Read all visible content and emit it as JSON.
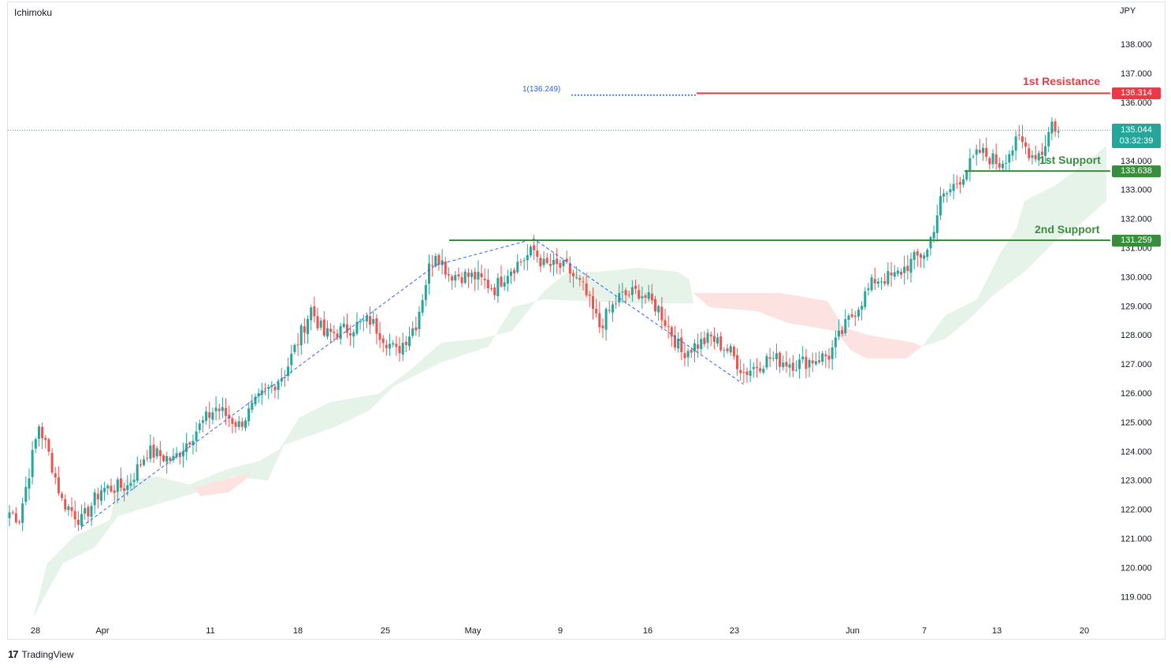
{
  "header": {
    "indicator": "Ichimoku",
    "currency": "JPY"
  },
  "branding": {
    "logo_text": "TradingView",
    "logo_mark": "17"
  },
  "colors": {
    "up": "#26a69a",
    "down": "#ef5350",
    "support": "#388e3c",
    "resistance": "#f23645",
    "cloud_bull": "#e6f3e9",
    "cloud_bear": "#fde2e2",
    "fib": "#2962ff",
    "price_tag": "#26a69a"
  },
  "levels": {
    "resistance_1": {
      "label": "1st Resistance",
      "value": "136.314"
    },
    "support_1": {
      "label": "1st Support",
      "value": "133.638"
    },
    "support_2": {
      "label": "2nd Support",
      "value": "131.259"
    }
  },
  "fib_label": "1(136.249)",
  "current_price": {
    "value": "135.044",
    "countdown": "03:32:39"
  },
  "chart_data": {
    "type": "candlestick",
    "title": "",
    "ylim": [
      118,
      138.8
    ],
    "y_ticks": [
      "138.000",
      "137.000",
      "136.000",
      "135.000",
      "134.000",
      "133.000",
      "132.000",
      "131.000",
      "130.000",
      "129.000",
      "128.000",
      "127.000",
      "126.000",
      "125.000",
      "124.000",
      "123.000",
      "122.000",
      "121.000",
      "120.000",
      "119.000"
    ],
    "x_ticks": [
      "28",
      "Apr",
      "11",
      "18",
      "25",
      "May",
      "9",
      "16",
      "23",
      "Jun",
      "7",
      "13",
      "20"
    ],
    "anchors": [
      {
        "i": 0,
        "c": 121.9
      },
      {
        "i": 3,
        "c": 121.7
      },
      {
        "i": 9,
        "c": 124.9
      },
      {
        "i": 12,
        "c": 123.9
      },
      {
        "i": 16,
        "c": 122.3
      },
      {
        "i": 22,
        "c": 121.6
      },
      {
        "i": 28,
        "c": 122.7
      },
      {
        "i": 36,
        "c": 122.8
      },
      {
        "i": 42,
        "c": 124.0
      },
      {
        "i": 50,
        "c": 123.7
      },
      {
        "i": 56,
        "c": 124.6
      },
      {
        "i": 63,
        "c": 125.5
      },
      {
        "i": 70,
        "c": 124.9
      },
      {
        "i": 77,
        "c": 125.9
      },
      {
        "i": 84,
        "c": 126.7
      },
      {
        "i": 92,
        "c": 128.9
      },
      {
        "i": 96,
        "c": 128.0
      },
      {
        "i": 103,
        "c": 128.2
      },
      {
        "i": 110,
        "c": 128.5
      },
      {
        "i": 118,
        "c": 127.4
      },
      {
        "i": 124,
        "c": 128.4
      },
      {
        "i": 128,
        "c": 130.3
      },
      {
        "i": 130,
        "c": 130.9
      },
      {
        "i": 134,
        "c": 130.1
      },
      {
        "i": 142,
        "c": 130.0
      },
      {
        "i": 148,
        "c": 129.6
      },
      {
        "i": 152,
        "c": 130.2
      },
      {
        "i": 160,
        "c": 130.9
      },
      {
        "i": 163,
        "c": 130.4
      },
      {
        "i": 170,
        "c": 130.3
      },
      {
        "i": 175,
        "c": 129.6
      },
      {
        "i": 180,
        "c": 128.3
      },
      {
        "i": 186,
        "c": 129.3
      },
      {
        "i": 192,
        "c": 129.5
      },
      {
        "i": 198,
        "c": 128.9
      },
      {
        "i": 205,
        "c": 127.4
      },
      {
        "i": 214,
        "c": 127.9
      },
      {
        "i": 220,
        "c": 127.4
      },
      {
        "i": 224,
        "c": 126.7
      },
      {
        "i": 232,
        "c": 127.2
      },
      {
        "i": 240,
        "c": 127.0
      },
      {
        "i": 250,
        "c": 127.3
      },
      {
        "i": 256,
        "c": 128.5
      },
      {
        "i": 264,
        "c": 129.9
      },
      {
        "i": 270,
        "c": 130.0
      },
      {
        "i": 276,
        "c": 130.6
      },
      {
        "i": 280,
        "c": 130.9
      },
      {
        "i": 284,
        "c": 132.6
      },
      {
        "i": 290,
        "c": 133.4
      },
      {
        "i": 296,
        "c": 134.3
      },
      {
        "i": 302,
        "c": 133.9
      },
      {
        "i": 308,
        "c": 134.7
      },
      {
        "i": 312,
        "c": 134.2
      },
      {
        "i": 315,
        "c": 134.3
      },
      {
        "i": 318,
        "c": 135.3
      },
      {
        "i": 320,
        "c": 135.0
      }
    ],
    "zigzag": [
      {
        "i": 22,
        "v": 121.4
      },
      {
        "i": 130,
        "v": 130.4
      },
      {
        "i": 160,
        "v": 131.3
      },
      {
        "i": 224,
        "v": 126.3
      }
    ],
    "levels": [
      {
        "name": "1st Resistance",
        "value": 136.314
      },
      {
        "name": "1st Support",
        "value": 133.638
      },
      {
        "name": "2nd Support",
        "value": 131.259
      }
    ],
    "fib_level": 136.249,
    "current_price": 135.044
  }
}
